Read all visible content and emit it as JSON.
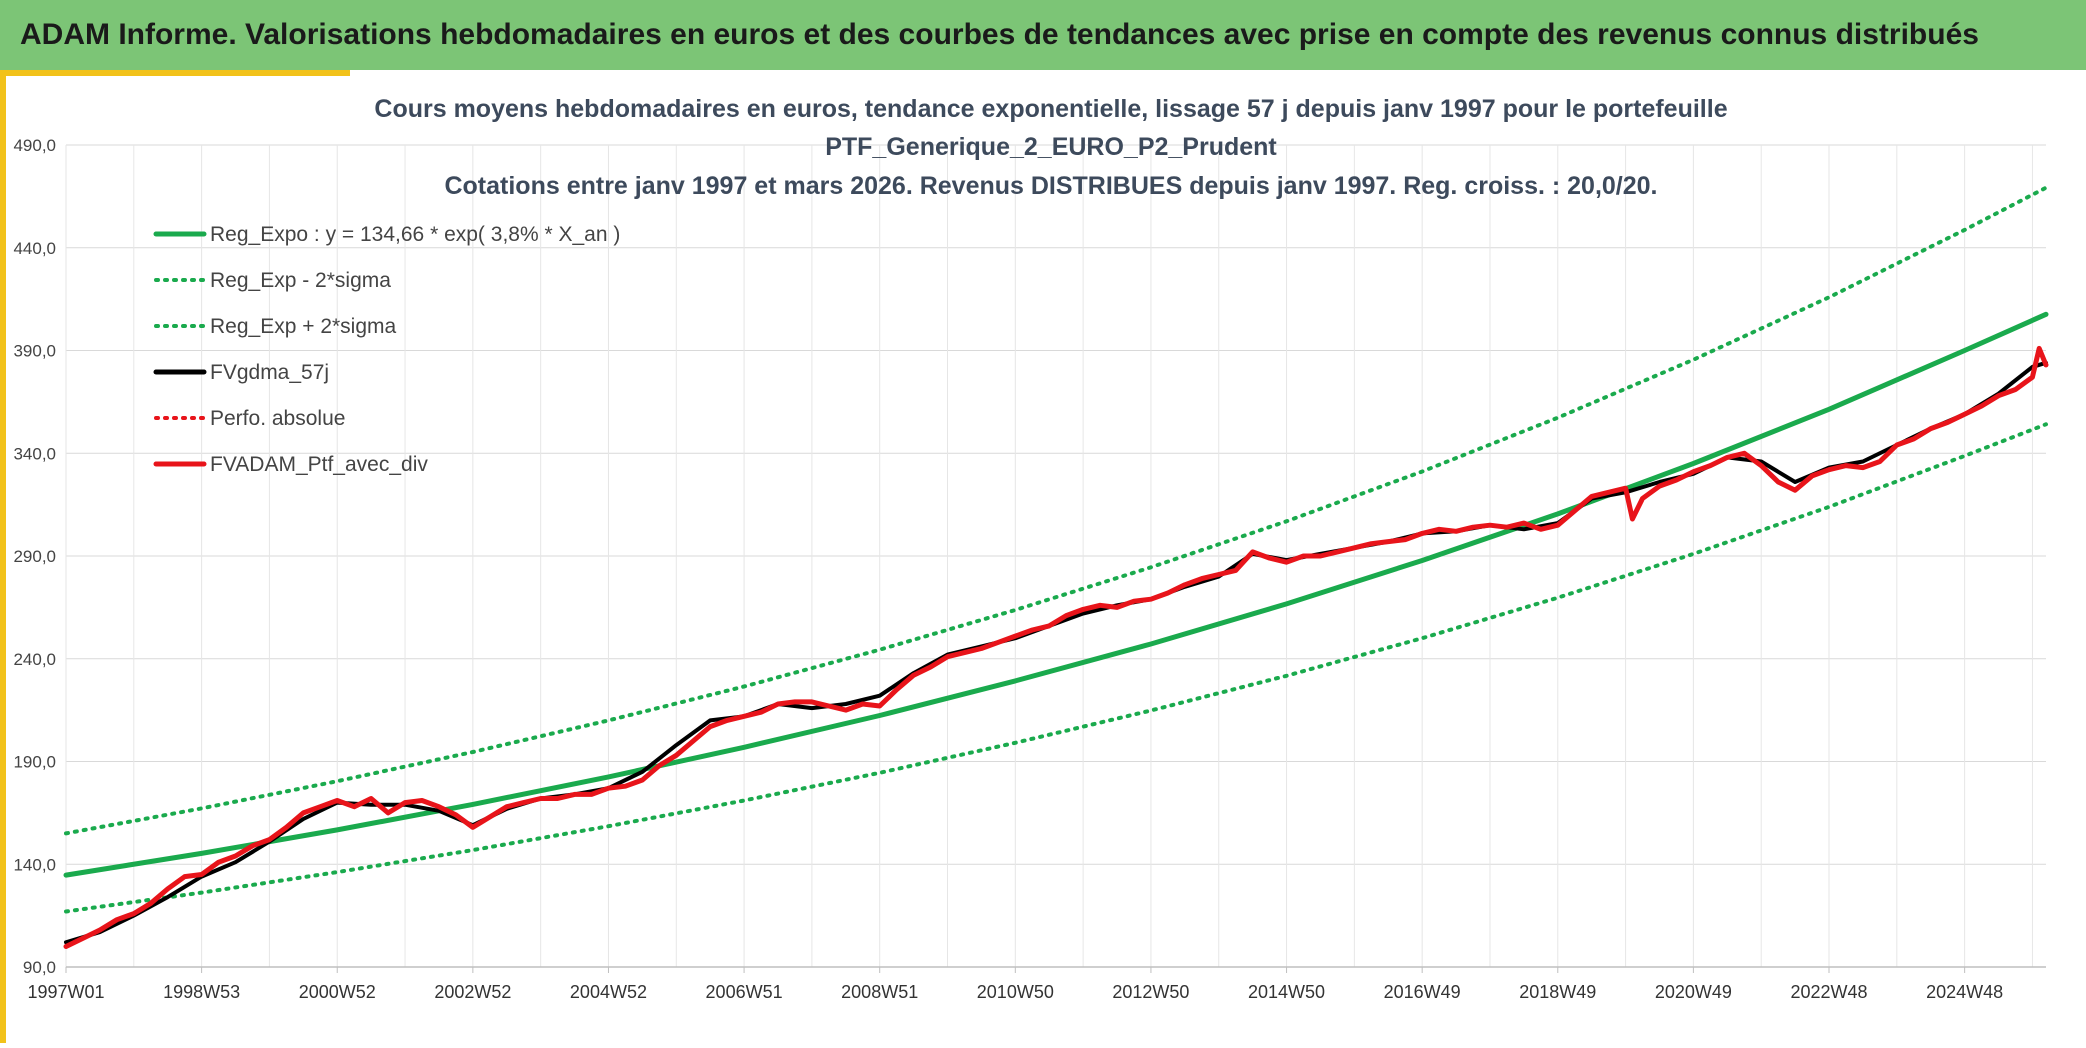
{
  "header": {
    "title": "ADAM Informe. Valorisations hebdomadaires en euros et des courbes de tendances avec prise en compte des revenus connus distribués"
  },
  "colors": {
    "header_bg": "#7cc576",
    "accent": "#f2c21a",
    "trend": "#1aaa4d",
    "black_series": "#000000",
    "red_series": "#e8141a"
  },
  "chart_data": {
    "type": "line",
    "title_lines": [
      "Cours moyens hebdomadaires en euros, tendance exponentielle, lissage 57 j depuis janv 1997 pour le portefeuille",
      "PTF_Generique_2_EURO_P2_Prudent",
      "Cotations entre janv 1997 et mars 2026. Revenus DISTRIBUES depuis janv 1997. Reg. croiss. : 20,0/20."
    ],
    "xlabel": "",
    "ylabel": "",
    "ylim": [
      90,
      490
    ],
    "yticks": [
      "90,0",
      "140,0",
      "190,0",
      "240,0",
      "290,0",
      "340,0",
      "390,0",
      "440,0",
      "490,0"
    ],
    "x_range": [
      1997.0,
      2026.2
    ],
    "x_ticks": [
      {
        "label": "1997W01",
        "x": 1997.0
      },
      {
        "label": "1998W53",
        "x": 1999.0
      },
      {
        "label": "2000W52",
        "x": 2001.0
      },
      {
        "label": "2002W52",
        "x": 2003.0
      },
      {
        "label": "2004W52",
        "x": 2005.0
      },
      {
        "label": "2006W51",
        "x": 2007.0
      },
      {
        "label": "2008W51",
        "x": 2009.0
      },
      {
        "label": "2010W50",
        "x": 2011.0
      },
      {
        "label": "2012W50",
        "x": 2013.0
      },
      {
        "label": "2014W50",
        "x": 2015.0
      },
      {
        "label": "2016W49",
        "x": 2017.0
      },
      {
        "label": "2018W49",
        "x": 2019.0
      },
      {
        "label": "2020W49",
        "x": 2021.0
      },
      {
        "label": "2022W48",
        "x": 2023.0
      },
      {
        "label": "2024W48",
        "x": 2025.0
      }
    ],
    "grid": true,
    "legend_position": "top-left",
    "legend": [
      {
        "label": "Reg_Expo : y = 134,66 * exp( 3,8% *  X_an )",
        "color": "#1aaa4d",
        "style": "solid"
      },
      {
        "label": "Reg_Exp - 2*sigma",
        "color": "#1aaa4d",
        "style": "dotted"
      },
      {
        "label": "Reg_Exp + 2*sigma",
        "color": "#1aaa4d",
        "style": "dotted"
      },
      {
        "label": "FVgdma_57j",
        "color": "#000000",
        "style": "solid"
      },
      {
        "label": "Perfo. absolue",
        "color": "#e8141a",
        "style": "dotted"
      },
      {
        "label": "FVADAM_Ptf_avec_div",
        "color": "#e8141a",
        "style": "solid"
      }
    ],
    "series": [
      {
        "name": "Reg_Expo : y = 134,66 * exp( 3,8% *  X_an )",
        "style": "solid",
        "x": [
          1997.0,
          1999.0,
          2001.0,
          2003.0,
          2005.0,
          2007.0,
          2009.0,
          2011.0,
          2013.0,
          2015.0,
          2017.0,
          2019.0,
          2021.0,
          2023.0,
          2025.0,
          2026.2
        ],
        "y": [
          134.7,
          145.3,
          156.7,
          169.1,
          182.5,
          196.9,
          212.4,
          229.2,
          247.2,
          266.7,
          287.8,
          310.5,
          335.0,
          361.4,
          390.0,
          407.6
        ]
      },
      {
        "name": "Reg_Exp - 2*sigma",
        "style": "dotted",
        "x": [
          1997.0,
          1999.0,
          2001.0,
          2003.0,
          2005.0,
          2007.0,
          2009.0,
          2011.0,
          2013.0,
          2015.0,
          2017.0,
          2019.0,
          2021.0,
          2023.0,
          2025.0,
          2026.2
        ],
        "y": [
          117.0,
          126.2,
          136.2,
          146.9,
          158.5,
          171.0,
          184.5,
          199.1,
          214.8,
          231.7,
          250.0,
          269.7,
          291.0,
          313.9,
          338.7,
          354.1
        ]
      },
      {
        "name": "Reg_Exp + 2*sigma",
        "style": "dotted",
        "x": [
          1997.0,
          1999.0,
          2001.0,
          2003.0,
          2005.0,
          2007.0,
          2009.0,
          2011.0,
          2013.0,
          2015.0,
          2017.0,
          2019.0,
          2021.0,
          2023.0,
          2025.0,
          2026.2
        ],
        "y": [
          155.0,
          167.2,
          180.4,
          194.6,
          210.0,
          226.5,
          244.4,
          263.7,
          284.5,
          306.9,
          331.1,
          357.3,
          385.5,
          415.9,
          448.7,
          469.2
        ]
      },
      {
        "name": "FVgdma_57j",
        "style": "solid",
        "x": [
          1997.0,
          1997.5,
          1998.0,
          1998.5,
          1999.0,
          1999.5,
          2000.0,
          2000.5,
          2001.0,
          2001.5,
          2002.0,
          2002.5,
          2003.0,
          2003.5,
          2004.0,
          2004.5,
          2005.0,
          2005.5,
          2006.0,
          2006.5,
          2007.0,
          2007.5,
          2008.0,
          2008.5,
          2009.0,
          2009.5,
          2010.0,
          2010.5,
          2011.0,
          2011.5,
          2012.0,
          2012.5,
          2013.0,
          2013.5,
          2014.0,
          2014.5,
          2015.0,
          2015.5,
          2016.0,
          2016.5,
          2017.0,
          2017.5,
          2018.0,
          2018.5,
          2019.0,
          2019.5,
          2020.0,
          2020.5,
          2021.0,
          2021.5,
          2022.0,
          2022.5,
          2023.0,
          2023.5,
          2024.0,
          2024.5,
          2025.0,
          2025.5,
          2026.0,
          2026.2
        ],
        "y": [
          102,
          107,
          115,
          124,
          134,
          141,
          151,
          162,
          170,
          169,
          169,
          166,
          159,
          167,
          172,
          174,
          177,
          185,
          198,
          210,
          212,
          218,
          216,
          218,
          222,
          233,
          242,
          246,
          250,
          256,
          262,
          266,
          269,
          275,
          280,
          291,
          288,
          291,
          294,
          297,
          301,
          302,
          305,
          303,
          306,
          318,
          321,
          326,
          330,
          338,
          336,
          326,
          333,
          336,
          344,
          352,
          359,
          369,
          382,
          384
        ]
      },
      {
        "name": "FVADAM_Ptf_avec_div",
        "style": "solid",
        "x": [
          1997.0,
          1997.25,
          1997.5,
          1997.75,
          1998.0,
          1998.25,
          1998.5,
          1998.75,
          1999.0,
          1999.25,
          1999.5,
          1999.75,
          2000.0,
          2000.25,
          2000.5,
          2000.75,
          2001.0,
          2001.25,
          2001.5,
          2001.75,
          2002.0,
          2002.25,
          2002.5,
          2002.75,
          2003.0,
          2003.25,
          2003.5,
          2003.75,
          2004.0,
          2004.25,
          2004.5,
          2004.75,
          2005.0,
          2005.25,
          2005.5,
          2005.75,
          2006.0,
          2006.25,
          2006.5,
          2006.75,
          2007.0,
          2007.25,
          2007.5,
          2007.75,
          2008.0,
          2008.25,
          2008.5,
          2008.75,
          2009.0,
          2009.25,
          2009.5,
          2009.75,
          2010.0,
          2010.25,
          2010.5,
          2010.75,
          2011.0,
          2011.25,
          2011.5,
          2011.75,
          2012.0,
          2012.25,
          2012.5,
          2012.75,
          2013.0,
          2013.25,
          2013.5,
          2013.75,
          2014.0,
          2014.25,
          2014.5,
          2014.75,
          2015.0,
          2015.25,
          2015.5,
          2015.75,
          2016.0,
          2016.25,
          2016.5,
          2016.75,
          2017.0,
          2017.25,
          2017.5,
          2017.75,
          2018.0,
          2018.25,
          2018.5,
          2018.75,
          2019.0,
          2019.25,
          2019.5,
          2019.75,
          2020.0,
          2020.1,
          2020.25,
          2020.5,
          2020.75,
          2021.0,
          2021.25,
          2021.5,
          2021.75,
          2022.0,
          2022.25,
          2022.5,
          2022.75,
          2023.0,
          2023.25,
          2023.5,
          2023.75,
          2024.0,
          2024.25,
          2024.5,
          2024.75,
          2025.0,
          2025.25,
          2025.5,
          2025.75,
          2026.0,
          2026.1,
          2026.2
        ],
        "y": [
          100,
          104,
          108,
          113,
          116,
          121,
          128,
          134,
          135,
          141,
          144,
          149,
          152,
          158,
          165,
          168,
          171,
          168,
          172,
          165,
          170,
          171,
          168,
          164,
          158,
          163,
          168,
          170,
          172,
          172,
          174,
          174,
          177,
          178,
          181,
          188,
          193,
          200,
          207,
          210,
          212,
          214,
          218,
          219,
          219,
          217,
          215,
          218,
          217,
          225,
          232,
          236,
          241,
          243,
          245,
          248,
          251,
          254,
          256,
          261,
          264,
          266,
          265,
          268,
          269,
          272,
          276,
          279,
          281,
          283,
          292,
          289,
          287,
          290,
          290,
          292,
          294,
          296,
          297,
          298,
          301,
          303,
          302,
          304,
          305,
          304,
          306,
          303,
          305,
          312,
          319,
          321,
          323,
          308,
          318,
          324,
          327,
          331,
          334,
          338,
          340,
          334,
          326,
          322,
          329,
          332,
          334,
          333,
          336,
          344,
          347,
          352,
          355,
          359,
          363,
          368,
          371,
          377,
          391,
          383
        ]
      }
    ]
  }
}
